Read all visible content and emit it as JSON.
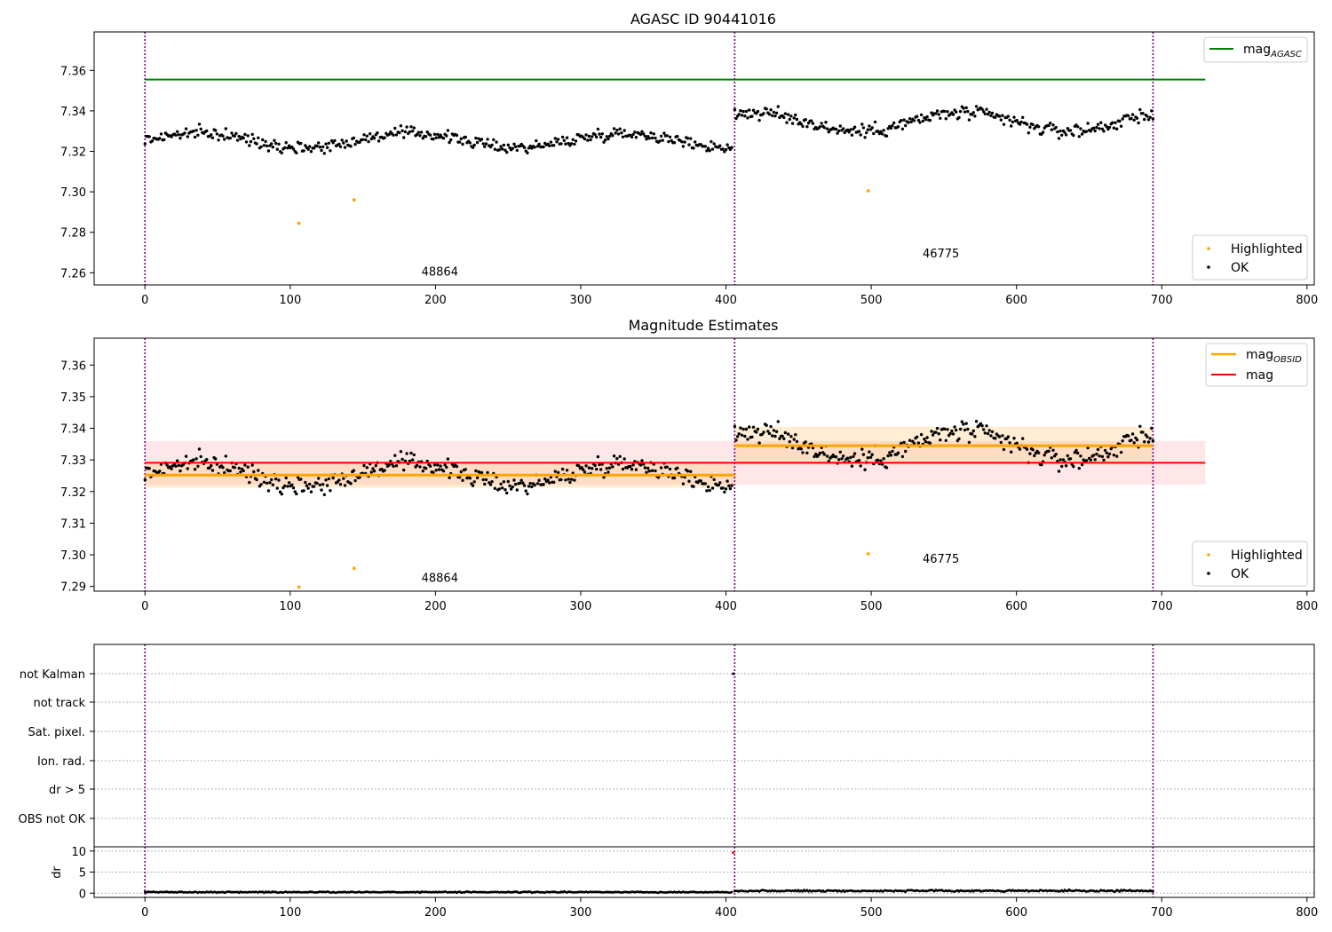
{
  "chart_data": [
    {
      "type": "scatter",
      "title": "AGASC ID 90441016",
      "xlim": [
        -35,
        805
      ],
      "ylim": [
        7.254,
        7.379
      ],
      "xticks": [
        0,
        100,
        200,
        300,
        400,
        500,
        600,
        700,
        800
      ],
      "yticks": [
        "7.26",
        "7.28",
        "7.30",
        "7.32",
        "7.34",
        "7.36"
      ],
      "grid": false,
      "obsid_boundaries": [
        0,
        406,
        694
      ],
      "obsid_labels": [
        {
          "text": "48864",
          "x": 203,
          "y": 7.2585
        },
        {
          "text": "46775",
          "x": 548,
          "y": 7.2675
        }
      ],
      "lines": [
        {
          "name": "mag_AGASC",
          "label_main": "mag",
          "label_sub": "AGASC",
          "color": "#008000",
          "x": [
            0,
            730
          ],
          "y": [
            7.3555,
            7.3555
          ]
        }
      ],
      "series": [
        {
          "name": "OK",
          "color": "#000000",
          "segments": [
            {
              "x_start": 0,
              "x_end": 404,
              "count": 400,
              "mean": 7.3255,
              "amp": 0.0035,
              "noise": 0.0028
            },
            {
              "x_start": 406,
              "x_end": 694,
              "count": 290,
              "mean": 7.3345,
              "amp": 0.0045,
              "noise": 0.0035
            }
          ]
        },
        {
          "name": "Highlighted",
          "color": "#ffa500",
          "points": [
            [
              106,
              7.2845
            ],
            [
              144,
              7.296
            ],
            [
              498,
              7.3005
            ]
          ]
        }
      ],
      "legend_top": "upper right",
      "legend_bottom": "lower right"
    },
    {
      "type": "scatter",
      "title": "Magnitude Estimates",
      "xlim": [
        -35,
        805
      ],
      "ylim": [
        7.2885,
        7.3685
      ],
      "xticks": [
        0,
        100,
        200,
        300,
        400,
        500,
        600,
        700,
        800
      ],
      "yticks": [
        "7.29",
        "7.30",
        "7.31",
        "7.32",
        "7.33",
        "7.34",
        "7.35",
        "7.36"
      ],
      "grid": false,
      "obsid_boundaries": [
        0,
        406,
        694
      ],
      "obsid_labels": [
        {
          "text": "48864",
          "x": 203,
          "y": 7.2915
        },
        {
          "text": "46775",
          "x": 548,
          "y": 7.2975
        }
      ],
      "bands": [
        {
          "color": "#ff9aa2",
          "opacity": 0.25,
          "x": [
            0,
            730
          ],
          "y": [
            7.3222,
            7.336
          ]
        },
        {
          "color": "#ffc870",
          "opacity": 0.3,
          "x": [
            0,
            406
          ],
          "y": [
            7.3212,
            7.329
          ]
        },
        {
          "color": "#ffc870",
          "opacity": 0.3,
          "x": [
            406,
            694
          ],
          "y": [
            7.3285,
            7.3405
          ]
        }
      ],
      "lines": [
        {
          "name": "mag_OBSID",
          "label_main": "mag",
          "label_sub": "OBSID",
          "color": "#ffa500",
          "segments": [
            [
              0,
              406,
              7.3252
            ],
            [
              406,
              694,
              7.3345
            ]
          ]
        },
        {
          "name": "mag",
          "label_main": "mag",
          "label_sub": "",
          "color": "#ff0000",
          "segments": [
            [
              0,
              730,
              7.3291
            ]
          ]
        }
      ],
      "series": [
        {
          "name": "OK",
          "color": "#000000",
          "segments": [
            {
              "x_start": 0,
              "x_end": 404,
              "count": 400,
              "mean": 7.3255,
              "amp": 0.0035,
              "noise": 0.0028
            },
            {
              "x_start": 406,
              "x_end": 694,
              "count": 290,
              "mean": 7.3345,
              "amp": 0.0045,
              "noise": 0.0035
            }
          ]
        },
        {
          "name": "Highlighted",
          "color": "#ffa500",
          "points": [
            [
              106,
              7.2898
            ],
            [
              144,
              7.2957
            ],
            [
              498,
              7.3003
            ]
          ]
        }
      ],
      "legend_top": "upper right",
      "legend_bottom": "lower right"
    },
    {
      "type": "scatter",
      "title": "",
      "xlim": [
        -35,
        805
      ],
      "categories": [
        "not Kalman",
        "not track",
        "Sat. pixel.",
        "Ion. rad.",
        "dr > 5",
        "OBS not OK"
      ],
      "grid": true,
      "obsid_boundaries": [
        0,
        406,
        694
      ],
      "points": [
        {
          "category": "not Kalman",
          "x": 405
        }
      ]
    },
    {
      "type": "scatter",
      "title": "",
      "xlim": [
        -35,
        805
      ],
      "ylim": [
        -1,
        11
      ],
      "xticks": [
        0,
        100,
        200,
        300,
        400,
        500,
        600,
        700,
        800
      ],
      "yticks": [
        "0",
        "5",
        "10"
      ],
      "ylabel": "dr",
      "grid": true,
      "obsid_boundaries": [
        0,
        406,
        694
      ],
      "series": [
        {
          "name": "dr",
          "color": "#000000",
          "segments": [
            {
              "x_start": 0,
              "x_end": 404,
              "count": 400,
              "mean": 0.25,
              "noise": 0.12
            },
            {
              "x_start": 406,
              "x_end": 694,
              "count": 290,
              "mean": 0.55,
              "noise": 0.18
            }
          ]
        },
        {
          "name": "dr_flag",
          "color": "#ff0000",
          "points": [
            [
              405,
              9.6
            ]
          ]
        }
      ]
    }
  ],
  "legend": {
    "ok": "OK",
    "highlighted": "Highlighted",
    "mag": "mag",
    "agasc_sub": "AGASC",
    "obsid_sub": "OBSID"
  }
}
